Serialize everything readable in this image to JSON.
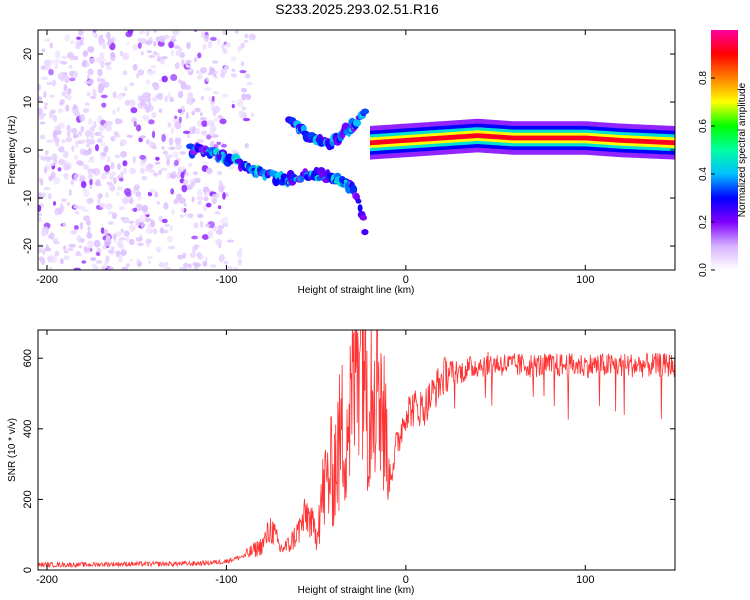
{
  "chart_data": [
    {
      "type": "heatmap",
      "title": "S233.2025.293.02.51.R16",
      "xlabel": "Height of straight line (km)",
      "ylabel": "Frequency (Hz)",
      "xlim": [
        -205,
        150
      ],
      "ylim": [
        -25,
        25
      ],
      "xticks": [
        -200,
        -100,
        0,
        100
      ],
      "xtick_labels": [
        "-200",
        "-100",
        "0",
        "100"
      ],
      "yticks": [
        -20,
        -10,
        0,
        10,
        20
      ],
      "ytick_labels": [
        "-20",
        "-10",
        "0",
        "10",
        "20"
      ],
      "colorbar": {
        "label": "Normalized spectral amplitude",
        "range": [
          0,
          1
        ],
        "ticks": [
          0.0,
          0.2,
          0.4,
          0.6,
          0.8
        ],
        "tick_labels": [
          "0.0",
          "0.2",
          "0.4",
          "0.6",
          "0.8"
        ],
        "stops": [
          "#ffffff",
          "#d6b3ff",
          "#8000ff",
          "#0000ff",
          "#00c0ff",
          "#00ffa0",
          "#00ff00",
          "#ffff00",
          "#ff8000",
          "#ff0000",
          "#ff00a0"
        ]
      },
      "noise_region": {
        "x_range": [
          -205,
          -100
        ],
        "freq_range": [
          -25,
          25
        ],
        "amplitude": 0.08
      },
      "features": [
        {
          "name": "lower descending trace",
          "x": [
            -120,
            -105,
            -90,
            -80,
            -70,
            -60,
            -50,
            -40,
            -30,
            -25,
            -22
          ],
          "freq": [
            0,
            -1,
            -3,
            -5,
            -6,
            -6,
            -5,
            -6,
            -8,
            -12,
            -18
          ],
          "amplitude": 0.3
        },
        {
          "name": "upper ascending trace",
          "x": [
            -65,
            -58,
            -50,
            -42,
            -36,
            -30,
            -26,
            -22
          ],
          "freq": [
            6,
            4,
            2,
            1,
            3,
            5,
            7,
            8
          ],
          "amplitude": 0.25
        },
        {
          "name": "carrier line",
          "x": [
            -20,
            0,
            20,
            40,
            60,
            80,
            100,
            120,
            150
          ],
          "freq": [
            1.5,
            2,
            2.5,
            3,
            2.5,
            2.5,
            2.5,
            2,
            1.5
          ],
          "amplitude": 0.95
        }
      ]
    },
    {
      "type": "line",
      "title": "",
      "xlabel": "Height of straight line (km)",
      "ylabel": "SNR (10 * v/v)",
      "xlim": [
        -205,
        150
      ],
      "ylim": [
        0,
        680
      ],
      "xticks": [
        -200,
        -100,
        0,
        100
      ],
      "xtick_labels": [
        "-200",
        "-100",
        "0",
        "100"
      ],
      "yticks": [
        0,
        200,
        400,
        600
      ],
      "ytick_labels": [
        "0",
        "200",
        "400",
        "600"
      ],
      "color": "#ff3333",
      "x": [
        -205,
        -180,
        -160,
        -140,
        -120,
        -110,
        -100,
        -90,
        -80,
        -75,
        -70,
        -65,
        -60,
        -55,
        -50,
        -45,
        -40,
        -35,
        -30,
        -27,
        -25,
        -22,
        -20,
        -18,
        -15,
        -12,
        -10,
        -5,
        0,
        5,
        10,
        15,
        20,
        25,
        30,
        40,
        50,
        60,
        80,
        100,
        120,
        150
      ],
      "y": [
        15,
        15,
        17,
        17,
        18,
        20,
        25,
        40,
        70,
        120,
        60,
        70,
        110,
        160,
        100,
        180,
        220,
        300,
        350,
        500,
        680,
        420,
        380,
        500,
        460,
        300,
        250,
        350,
        450,
        460,
        460,
        500,
        540,
        570,
        560,
        580,
        585,
        580,
        580,
        580,
        580,
        580
      ]
    }
  ]
}
